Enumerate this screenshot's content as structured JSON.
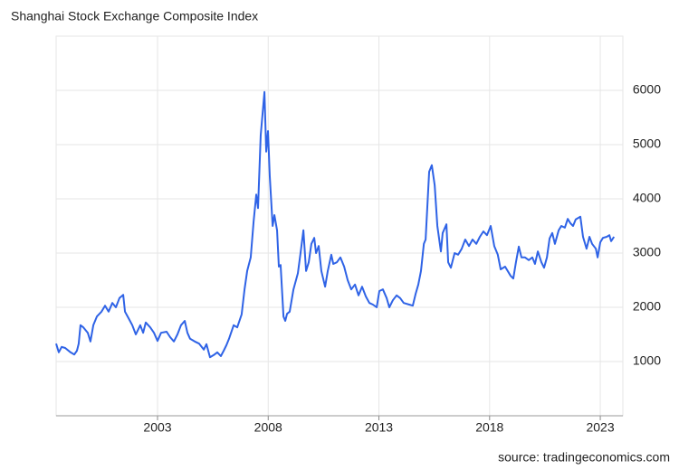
{
  "chart_data": {
    "type": "line",
    "title": "Shanghai Stock Exchange Composite Index",
    "source": "source: tradingeconomics.com",
    "color": "#2f63e6",
    "grid": true,
    "xlim": [
      1998.42,
      2024.02
    ],
    "xticks": [
      2003,
      2008,
      2013,
      2018,
      2023
    ],
    "ylim": [
      0,
      7000
    ],
    "yticks": [
      1000,
      2000,
      3000,
      4000,
      5000,
      6000
    ],
    "x": [
      1998.42,
      1998.54,
      1998.67,
      1998.83,
      1999.07,
      1999.24,
      1999.36,
      1999.44,
      1999.52,
      1999.65,
      1999.85,
      1999.97,
      2000.1,
      2000.26,
      2000.47,
      2000.63,
      2000.79,
      2000.96,
      2001.12,
      2001.28,
      2001.45,
      2001.53,
      2001.69,
      2001.86,
      2002.02,
      2002.22,
      2002.35,
      2002.47,
      2002.67,
      2002.84,
      2003.0,
      2003.16,
      2003.41,
      2003.57,
      2003.74,
      2003.9,
      2004.06,
      2004.23,
      2004.35,
      2004.47,
      2004.68,
      2004.88,
      2005.09,
      2005.21,
      2005.37,
      2005.54,
      2005.7,
      2005.86,
      2005.99,
      2006.11,
      2006.23,
      2006.44,
      2006.6,
      2006.8,
      2006.93,
      2007.05,
      2007.21,
      2007.34,
      2007.46,
      2007.54,
      2007.66,
      2007.83,
      2007.91,
      2007.99,
      2008.07,
      2008.2,
      2008.28,
      2008.4,
      2008.48,
      2008.56,
      2008.69,
      2008.77,
      2008.85,
      2008.97,
      2009.14,
      2009.34,
      2009.46,
      2009.59,
      2009.71,
      2009.83,
      2009.95,
      2010.08,
      2010.16,
      2010.28,
      2010.4,
      2010.57,
      2010.69,
      2010.85,
      2010.94,
      2011.1,
      2011.26,
      2011.43,
      2011.59,
      2011.75,
      2011.92,
      2012.08,
      2012.24,
      2012.41,
      2012.57,
      2012.73,
      2012.9,
      2013.02,
      2013.18,
      2013.35,
      2013.47,
      2013.63,
      2013.8,
      2013.96,
      2014.12,
      2014.37,
      2014.53,
      2014.66,
      2014.78,
      2014.9,
      2015.03,
      2015.11,
      2015.27,
      2015.39,
      2015.52,
      2015.64,
      2015.8,
      2015.88,
      2016.05,
      2016.13,
      2016.25,
      2016.42,
      2016.58,
      2016.74,
      2016.9,
      2017.07,
      2017.23,
      2017.4,
      2017.56,
      2017.72,
      2017.88,
      2018.05,
      2018.21,
      2018.37,
      2018.5,
      2018.7,
      2018.95,
      2019.07,
      2019.19,
      2019.32,
      2019.44,
      2019.6,
      2019.77,
      2019.93,
      2020.05,
      2020.18,
      2020.34,
      2020.46,
      2020.59,
      2020.71,
      2020.83,
      2020.95,
      2021.12,
      2021.24,
      2021.4,
      2021.53,
      2021.65,
      2021.77,
      2021.89,
      2022.1,
      2022.22,
      2022.38,
      2022.51,
      2022.63,
      2022.8,
      2022.88,
      2023.0,
      2023.12,
      2023.29,
      2023.41,
      2023.49,
      2023.62
    ],
    "values": [
      1330,
      1170,
      1270,
      1250,
      1170,
      1130,
      1200,
      1330,
      1670,
      1630,
      1530,
      1370,
      1670,
      1830,
      1920,
      2030,
      1920,
      2080,
      2000,
      2170,
      2230,
      1920,
      1800,
      1670,
      1500,
      1670,
      1530,
      1720,
      1630,
      1530,
      1380,
      1530,
      1550,
      1450,
      1370,
      1500,
      1670,
      1750,
      1530,
      1420,
      1370,
      1330,
      1220,
      1320,
      1080,
      1120,
      1170,
      1100,
      1200,
      1300,
      1420,
      1670,
      1630,
      1870,
      2330,
      2670,
      2920,
      3580,
      4080,
      3830,
      5170,
      5970,
      4870,
      5250,
      4420,
      3500,
      3700,
      3420,
      2750,
      2780,
      1830,
      1750,
      1880,
      1920,
      2330,
      2630,
      3000,
      3420,
      2670,
      2830,
      3170,
      3280,
      3000,
      3130,
      2670,
      2380,
      2670,
      2970,
      2800,
      2830,
      2920,
      2750,
      2500,
      2330,
      2420,
      2220,
      2380,
      2200,
      2080,
      2050,
      2000,
      2300,
      2330,
      2170,
      2000,
      2130,
      2220,
      2170,
      2080,
      2050,
      2030,
      2250,
      2420,
      2670,
      3170,
      3250,
      4500,
      4620,
      4250,
      3500,
      3030,
      3370,
      3530,
      2830,
      2730,
      3000,
      2970,
      3080,
      3250,
      3130,
      3250,
      3170,
      3300,
      3400,
      3330,
      3500,
      3130,
      2970,
      2700,
      2750,
      2580,
      2530,
      2830,
      3120,
      2920,
      2920,
      2870,
      2920,
      2800,
      3030,
      2830,
      2730,
      2920,
      3270,
      3370,
      3170,
      3420,
      3500,
      3470,
      3630,
      3550,
      3500,
      3620,
      3670,
      3300,
      3080,
      3300,
      3170,
      3080,
      2920,
      3200,
      3280,
      3300,
      3330,
      3220,
      3300
    ]
  }
}
